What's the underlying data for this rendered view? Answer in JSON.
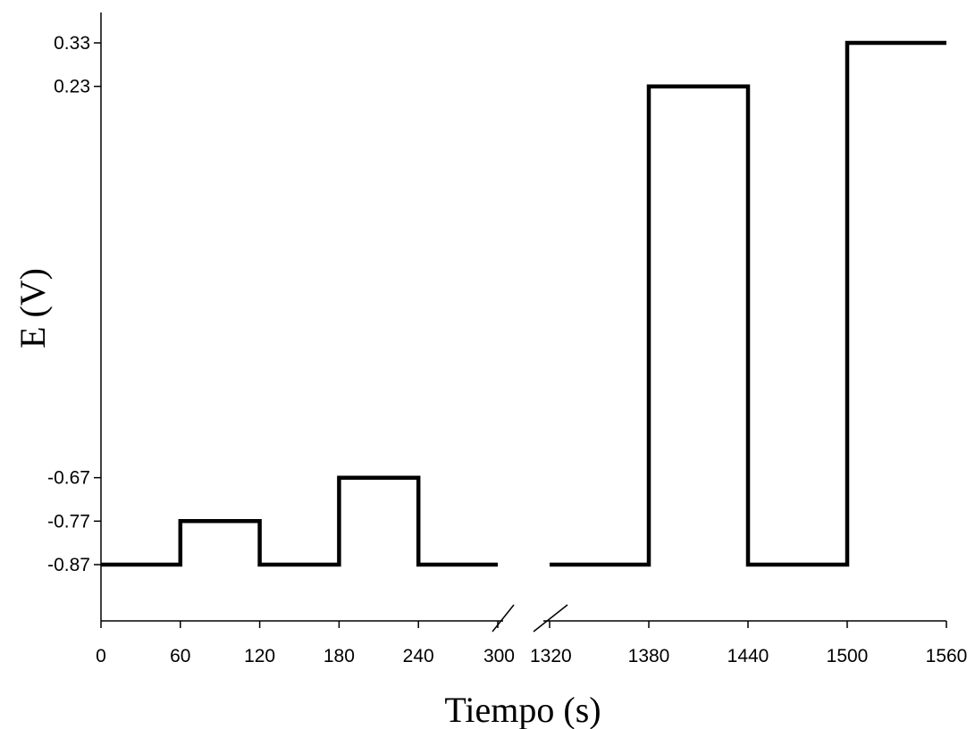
{
  "chart_data": {
    "type": "line",
    "title": "",
    "xlabel": "Tiempo (s)",
    "ylabel": "E (V)",
    "ylim": [
      -1.0,
      0.36
    ],
    "grid": false,
    "broken_x_axis": true,
    "y_ticks": [
      -0.87,
      -0.77,
      -0.67,
      0.23,
      0.33
    ],
    "y_tick_labels": [
      "-0.87",
      "-0.77",
      "-0.67",
      "0.23",
      "0.33"
    ],
    "x_segments": [
      {
        "range": [
          0,
          300
        ],
        "ticks": [
          0,
          60,
          120,
          180,
          240,
          300
        ],
        "tick_labels": [
          "0",
          "60",
          "120",
          "180",
          "240",
          "300"
        ],
        "points": [
          [
            0,
            -0.87
          ],
          [
            60,
            -0.87
          ],
          [
            60,
            -0.77
          ],
          [
            120,
            -0.77
          ],
          [
            120,
            -0.87
          ],
          [
            180,
            -0.87
          ],
          [
            180,
            -0.67
          ],
          [
            240,
            -0.67
          ],
          [
            240,
            -0.87
          ],
          [
            300,
            -0.87
          ]
        ]
      },
      {
        "range": [
          1320,
          1560
        ],
        "ticks": [
          1320,
          1380,
          1440,
          1500,
          1560
        ],
        "tick_labels": [
          "1320",
          "1380",
          "1440",
          "1500",
          "1560"
        ],
        "points": [
          [
            1320,
            -0.87
          ],
          [
            1380,
            -0.87
          ],
          [
            1380,
            0.23
          ],
          [
            1440,
            0.23
          ],
          [
            1440,
            -0.87
          ],
          [
            1500,
            -0.87
          ],
          [
            1500,
            0.33
          ],
          [
            1560,
            0.33
          ]
        ]
      }
    ],
    "series": [
      {
        "values_ref": "x_segments",
        "color": "#000000"
      }
    ]
  }
}
